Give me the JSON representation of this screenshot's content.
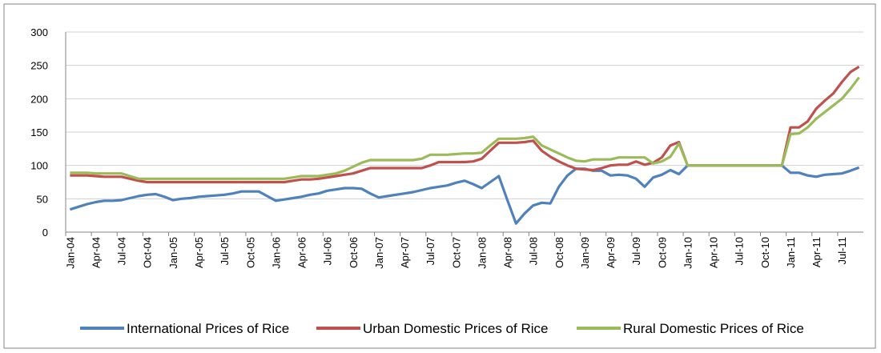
{
  "chart_data": {
    "type": "line",
    "categories": [
      "Jan-04",
      null,
      null,
      "Apr-04",
      null,
      null,
      "Jul-04",
      null,
      null,
      "Oct-04",
      null,
      null,
      "Jan-05",
      null,
      null,
      "Apr-05",
      null,
      null,
      "Jul-05",
      null,
      null,
      "Oct-05",
      null,
      null,
      "Jan-06",
      null,
      null,
      "Apr-06",
      null,
      null,
      "Jul-06",
      null,
      null,
      "Oct-06",
      null,
      null,
      "Jan-07",
      null,
      null,
      "Apr-07",
      null,
      null,
      "Jul-07",
      null,
      null,
      "Oct-07",
      null,
      null,
      "Jan-08",
      null,
      null,
      "Apr-08",
      null,
      null,
      "Jul-08",
      null,
      null,
      "Oct-08",
      null,
      null,
      "Jan-09",
      null,
      null,
      "Apr-09",
      null,
      null,
      "Jul-09",
      null,
      null,
      "Oct-09",
      null,
      null,
      "Jan-10",
      null,
      null,
      "Apr-10",
      null,
      null,
      "Jul-10",
      null,
      null,
      "Oct-10",
      null,
      null,
      "Jan-11",
      null,
      null,
      "Apr-11",
      null,
      null,
      "Jul-11",
      null,
      null
    ],
    "series": [
      {
        "name": "International Prices of Rice",
        "color": "#4f81bd",
        "values": [
          34,
          38,
          42,
          45,
          47,
          47,
          48,
          51,
          54,
          56,
          57,
          53,
          48,
          50,
          51,
          53,
          54,
          55,
          56,
          58,
          61,
          61,
          61,
          54,
          47,
          49,
          51,
          53,
          56,
          58,
          62,
          64,
          66,
          66,
          65,
          58,
          52,
          54,
          56,
          58,
          60,
          63,
          66,
          68,
          70,
          74,
          77,
          72,
          66,
          75,
          84,
          48,
          13,
          28,
          40,
          44,
          43,
          68,
          85,
          95,
          95,
          92,
          92,
          85,
          86,
          85,
          80,
          68,
          82,
          86,
          93,
          87,
          100,
          100,
          100,
          100,
          100,
          100,
          100,
          100,
          100,
          100,
          100,
          100,
          89,
          89,
          85,
          83,
          86,
          87,
          88,
          92,
          97
        ]
      },
      {
        "name": "Urban Domestic Prices of Rice",
        "color": "#c0504d",
        "values": [
          85,
          85,
          85,
          84,
          83,
          83,
          83,
          80,
          77,
          75,
          75,
          75,
          75,
          75,
          75,
          75,
          75,
          75,
          75,
          75,
          75,
          75,
          75,
          75,
          75,
          75,
          77,
          79,
          79,
          80,
          82,
          84,
          86,
          88,
          92,
          96,
          96,
          96,
          96,
          96,
          96,
          96,
          100,
          105,
          105,
          105,
          105,
          106,
          110,
          122,
          134,
          134,
          134,
          135,
          137,
          122,
          113,
          106,
          100,
          95,
          94,
          93,
          96,
          100,
          101,
          101,
          106,
          101,
          104,
          112,
          130,
          135,
          100,
          100,
          100,
          100,
          100,
          100,
          100,
          100,
          100,
          100,
          100,
          100,
          157,
          157,
          166,
          185,
          197,
          208,
          225,
          240,
          248
        ]
      },
      {
        "name": "Rural Domestic Prices of Rice",
        "color": "#9bbb59",
        "values": [
          89,
          89,
          89,
          88,
          88,
          88,
          88,
          84,
          80,
          80,
          80,
          80,
          80,
          80,
          80,
          80,
          80,
          80,
          80,
          80,
          80,
          80,
          80,
          80,
          80,
          80,
          82,
          84,
          84,
          84,
          86,
          88,
          92,
          98,
          104,
          108,
          108,
          108,
          108,
          108,
          108,
          110,
          116,
          116,
          116,
          117,
          118,
          118,
          119,
          130,
          140,
          140,
          140,
          141,
          143,
          130,
          124,
          118,
          112,
          107,
          106,
          109,
          109,
          109,
          112,
          112,
          112,
          112,
          103,
          106,
          113,
          133,
          100,
          100,
          100,
          100,
          100,
          100,
          100,
          100,
          100,
          100,
          100,
          100,
          147,
          148,
          157,
          170,
          180,
          190,
          200,
          215,
          232
        ]
      }
    ],
    "ylim": [
      0,
      300
    ],
    "yticks": [
      0,
      50,
      100,
      150,
      200,
      250,
      300
    ],
    "grid": true,
    "legend": "bottom"
  }
}
